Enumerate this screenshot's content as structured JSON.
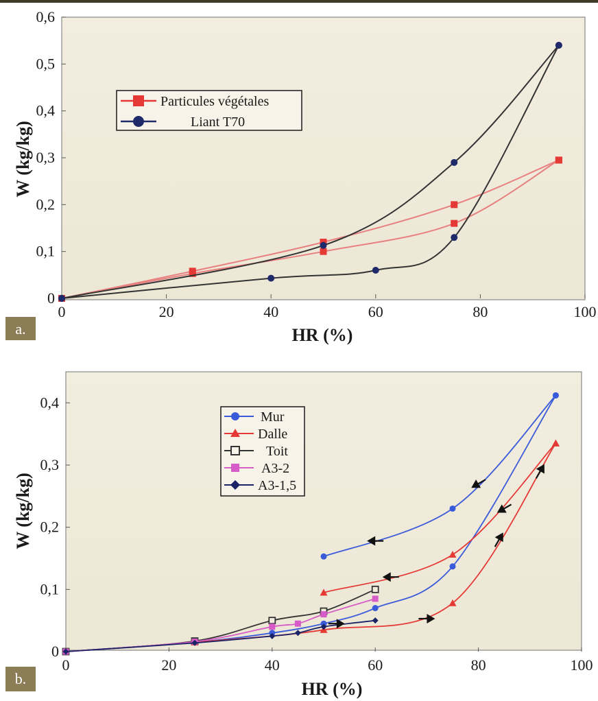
{
  "chart_data": [
    {
      "panel": "a.",
      "type": "line",
      "xlabel": "HR (%)",
      "ylabel": "W (kg/kg)",
      "xlim": [
        0,
        100
      ],
      "ylim": [
        0,
        0.6
      ],
      "x_ticks": [
        "0",
        "20",
        "40",
        "60",
        "80",
        "100"
      ],
      "y_ticks": [
        "0",
        "0,1",
        "0,2",
        "0,3",
        "0,4",
        "0,5",
        "0,6"
      ],
      "grid": false,
      "legend_position": "upper-left",
      "series": [
        {
          "name": "Particules végétales",
          "marker": "square",
          "color": "#e53935",
          "line_color": "#e88080",
          "adsorption": [
            [
              0,
              0
            ],
            [
              25,
              0.053
            ],
            [
              50,
              0.1
            ],
            [
              75,
              0.16
            ],
            [
              95,
              0.295
            ]
          ],
          "desorption": [
            [
              95,
              0.295
            ],
            [
              75,
              0.2
            ],
            [
              50,
              0.12
            ],
            [
              25,
              0.058
            ],
            [
              0,
              0
            ]
          ]
        },
        {
          "name": "Liant T70",
          "marker": "circle",
          "color": "#1f2a6b",
          "line_color": "#333333",
          "adsorption": [
            [
              0,
              0
            ],
            [
              40,
              0.043
            ],
            [
              60,
              0.06
            ],
            [
              75,
              0.13
            ],
            [
              95,
              0.54
            ]
          ],
          "desorption": [
            [
              95,
              0.54
            ],
            [
              75,
              0.29
            ],
            [
              50,
              0.113
            ],
            [
              0,
              0
            ]
          ]
        }
      ]
    },
    {
      "panel": "b.",
      "type": "line",
      "xlabel": "HR (%)",
      "ylabel": "W (kg/kg)",
      "xlim": [
        0,
        100
      ],
      "ylim": [
        0,
        0.45
      ],
      "x_ticks": [
        "0",
        "20",
        "40",
        "60",
        "80",
        "100"
      ],
      "y_ticks": [
        "0",
        "0,1",
        "0,2",
        "0,3",
        "0,4"
      ],
      "grid": false,
      "legend_position": "upper-center",
      "series": [
        {
          "name": "Mur",
          "marker": "circle",
          "color": "#3a5bd9",
          "adsorption": [
            [
              0,
              0
            ],
            [
              25,
              0.015
            ],
            [
              40,
              0.03
            ],
            [
              50,
              0.045
            ],
            [
              60,
              0.07
            ],
            [
              75,
              0.137
            ],
            [
              95,
              0.412
            ]
          ],
          "desorption": [
            [
              95,
              0.412
            ],
            [
              75,
              0.23
            ],
            [
              50,
              0.153
            ]
          ]
        },
        {
          "name": "Dalle",
          "marker": "triangle",
          "color": "#e53935",
          "adsorption": [
            [
              0,
              0
            ],
            [
              25,
              0.015
            ],
            [
              50,
              0.035
            ],
            [
              75,
              0.078
            ],
            [
              95,
              0.335
            ]
          ],
          "desorption": [
            [
              95,
              0.335
            ],
            [
              75,
              0.156
            ],
            [
              50,
              0.095
            ]
          ]
        },
        {
          "name": "Toit",
          "marker": "open-square",
          "color": "#333333",
          "adsorption": [
            [
              0,
              0
            ],
            [
              25,
              0.017
            ],
            [
              40,
              0.05
            ],
            [
              50,
              0.065
            ],
            [
              60,
              0.1
            ]
          ]
        },
        {
          "name": "A3-2",
          "marker": "square",
          "color": "#d65cc8",
          "adsorption": [
            [
              0,
              0
            ],
            [
              25,
              0.016
            ],
            [
              40,
              0.04
            ],
            [
              45,
              0.045
            ],
            [
              50,
              0.06
            ],
            [
              60,
              0.085
            ]
          ]
        },
        {
          "name": "A3-1,5",
          "marker": "diamond",
          "color": "#1a2366",
          "adsorption": [
            [
              0,
              0
            ],
            [
              25,
              0.014
            ],
            [
              40,
              0.025
            ],
            [
              45,
              0.03
            ],
            [
              50,
              0.04
            ],
            [
              60,
              0.05
            ]
          ]
        }
      ],
      "arrows": [
        {
          "at": [
            52.5,
            0.045
          ],
          "dir": "right"
        },
        {
          "at": [
            70,
            0.053
          ],
          "dir": "right"
        },
        {
          "at": [
            84,
            0.18
          ],
          "dir": "up"
        },
        {
          "at": [
            92,
            0.29
          ],
          "dir": "up"
        },
        {
          "at": [
            80,
            0.27
          ],
          "dir": "down-left"
        },
        {
          "at": [
            85,
            0.23
          ],
          "dir": "down-left"
        },
        {
          "at": [
            60,
            0.178
          ],
          "dir": "left"
        },
        {
          "at": [
            63,
            0.12
          ],
          "dir": "left"
        }
      ]
    }
  ]
}
